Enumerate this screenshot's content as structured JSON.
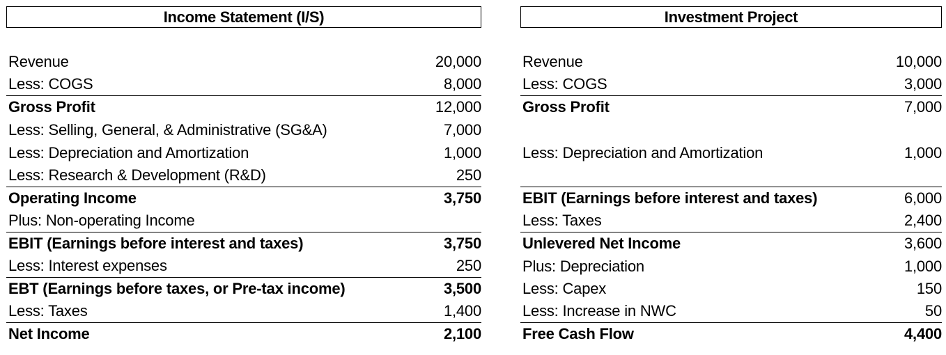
{
  "income_statement": {
    "title": "Income Statement (I/S)",
    "rows": [
      {
        "label": "Revenue",
        "value": "20,000"
      },
      {
        "label": "Less: COGS",
        "value": "8,000"
      },
      {
        "label": "Gross Profit",
        "value": "12,000"
      },
      {
        "label": "Less: Selling, General, & Administrative (SG&A)",
        "value": "7,000"
      },
      {
        "label": "Less: Depreciation and Amortization",
        "value": "1,000"
      },
      {
        "label": "Less: Research & Development (R&D)",
        "value": "250"
      },
      {
        "label": "Operating Income",
        "value": "3,750"
      },
      {
        "label": "Plus: Non-operating Income",
        "value": ""
      },
      {
        "label": "EBIT (Earnings before interest and taxes)",
        "value": "3,750"
      },
      {
        "label": "Less: Interest expenses",
        "value": "250"
      },
      {
        "label": "EBT (Earnings before taxes, or Pre-tax income)",
        "value": "3,500"
      },
      {
        "label": "Less: Taxes",
        "value": "1,400"
      },
      {
        "label": "Net Income",
        "value": "2,100"
      }
    ]
  },
  "investment_project": {
    "title": "Investment Project",
    "rows": [
      {
        "label": "Revenue",
        "value": "10,000"
      },
      {
        "label": "Less: COGS",
        "value": "3,000"
      },
      {
        "label": "Gross Profit",
        "value": "7,000"
      },
      {
        "label": "",
        "value": ""
      },
      {
        "label": "Less: Depreciation and Amortization",
        "value": "1,000"
      },
      {
        "label": "",
        "value": ""
      },
      {
        "label": "EBIT (Earnings before interest and taxes)",
        "value": "6,000"
      },
      {
        "label": "Less: Taxes",
        "value": "2,400"
      },
      {
        "label": "Unlevered Net Income",
        "value": "3,600"
      },
      {
        "label": "Plus: Depreciation",
        "value": "1,000"
      },
      {
        "label": "Less: Capex",
        "value": "150"
      },
      {
        "label": "Less: Increase in NWC",
        "value": "50"
      },
      {
        "label": "Free Cash Flow",
        "value": "4,400"
      }
    ]
  }
}
